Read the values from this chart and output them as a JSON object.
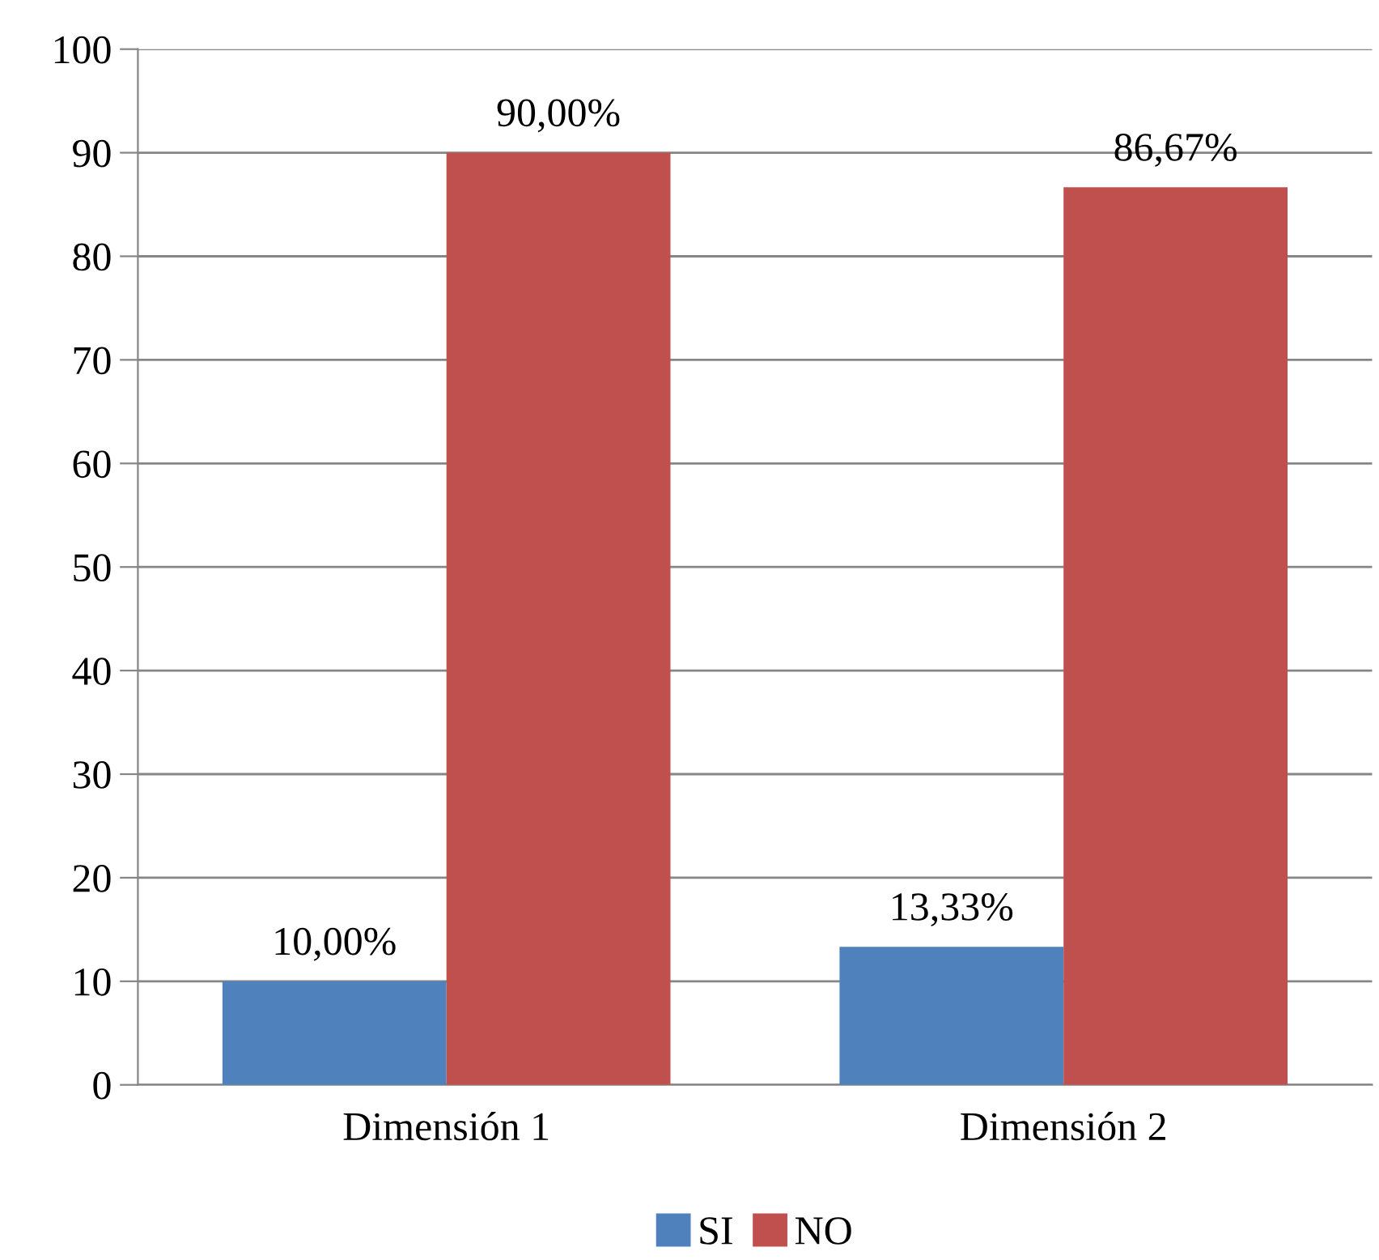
{
  "chart_data": {
    "type": "bar",
    "categories": [
      "Dimensión 1",
      "Dimensión 2"
    ],
    "series": [
      {
        "name": "SI",
        "color": "#4f81bd",
        "values": [
          10,
          13.33
        ],
        "value_labels": [
          "10,00%",
          "13,33%"
        ]
      },
      {
        "name": "NO",
        "color": "#c0504d",
        "values": [
          90,
          86.67
        ],
        "value_labels": [
          "90,00%",
          "86,67%"
        ]
      }
    ],
    "ylim": [
      0,
      100
    ],
    "yticks": [
      0,
      10,
      20,
      30,
      40,
      50,
      60,
      70,
      80,
      90,
      100
    ],
    "grid": "y",
    "legend": "bottom"
  }
}
